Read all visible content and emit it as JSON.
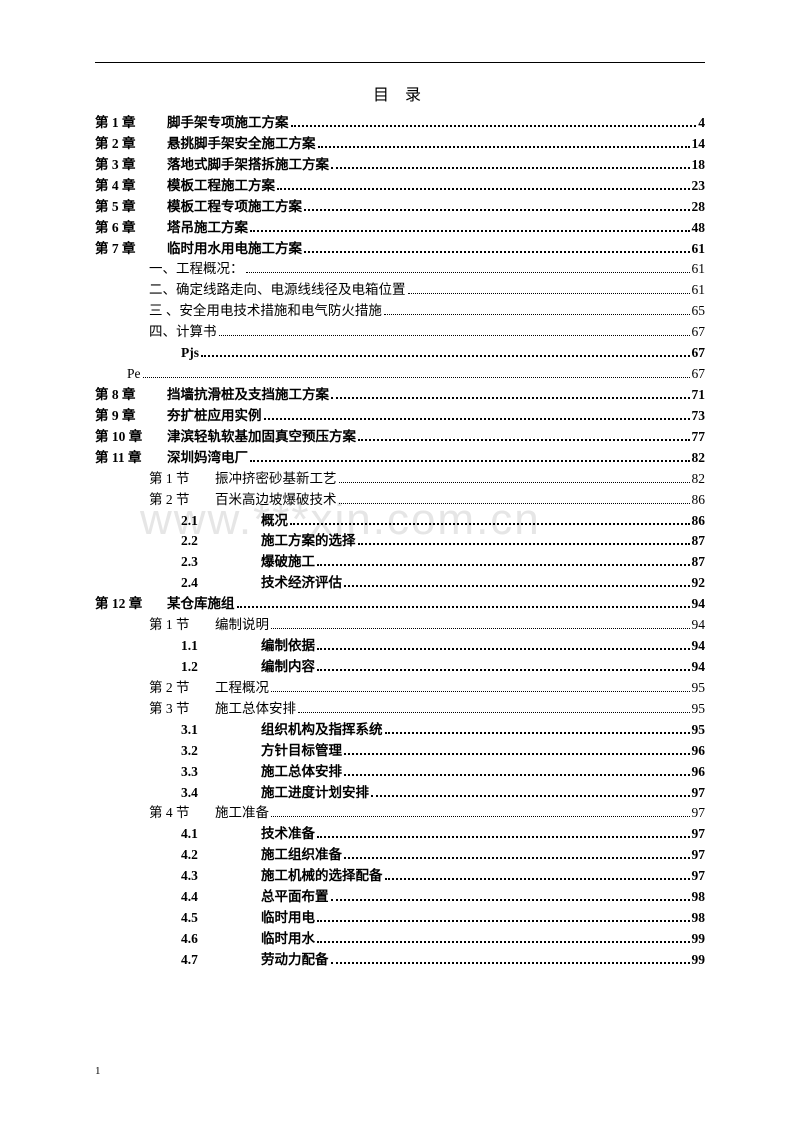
{
  "title": "目 录",
  "watermark": "www.***xin.com.cn",
  "footer_page": "1",
  "style": {
    "page_bg": "#ffffff",
    "text_color": "#000000",
    "watermark_color": "#e6e6e6",
    "font_body_pt": 10.5,
    "font_title_pt": 12,
    "line_height": 1.55
  },
  "entries": [
    {
      "level": "lvl1",
      "bold": true,
      "label": "第 1 章",
      "title": "脚手架专项施工方案",
      "page": "4"
    },
    {
      "level": "lvl1",
      "bold": true,
      "label": "第 2 章",
      "title": "悬挑脚手架安全施工方案",
      "page": "14"
    },
    {
      "level": "lvl1",
      "bold": true,
      "label": "第 3 章",
      "title": "落地式脚手架搭拆施工方案",
      "page": "18"
    },
    {
      "level": "lvl1",
      "bold": true,
      "label": "第 4 章",
      "title": "模板工程施工方案",
      "page": "23"
    },
    {
      "level": "lvl1",
      "bold": true,
      "label": "第 5 章",
      "title": "模板工程专项施工方案",
      "page": "28"
    },
    {
      "level": "lvl1",
      "bold": true,
      "label": "第 6 章",
      "title": "塔吊施工方案",
      "page": "48"
    },
    {
      "level": "lvl1",
      "bold": true,
      "label": "第 7 章",
      "title": "临时用水用电施工方案",
      "page": "61"
    },
    {
      "level": "lvl2n",
      "bold": false,
      "label": "",
      "title": "一、工程概况：",
      "page": "61",
      "thin": true
    },
    {
      "level": "lvl2n",
      "bold": false,
      "label": "",
      "title": "二、确定线路走向、电源线线径及电箱位置",
      "page": "61",
      "thin": true
    },
    {
      "level": "lvl2n",
      "bold": false,
      "label": "",
      "title": "三 、安全用电技术措施和电气防火措施",
      "page": "65",
      "thin": true
    },
    {
      "level": "lvl2n",
      "bold": false,
      "label": "",
      "title": "四、计算书",
      "page": "67",
      "thin": true
    },
    {
      "level": "lvl-pjs",
      "bold": true,
      "label": "",
      "title": "Pjs",
      "page": "67"
    },
    {
      "level": "lvl-pe",
      "bold": false,
      "label": "",
      "title": "Pe",
      "page": "67",
      "thin": true
    },
    {
      "level": "lvl1",
      "bold": true,
      "label": "第 8 章",
      "title": "挡墙抗滑桩及支挡施工方案",
      "page": "71"
    },
    {
      "level": "lvl1",
      "bold": true,
      "label": "第 9 章",
      "title": "夯扩桩应用实例",
      "page": "73"
    },
    {
      "level": "lvl1",
      "bold": true,
      "label": "第 10 章",
      "title": "津滨轻轨软基加固真空预压方案",
      "page": "77"
    },
    {
      "level": "lvl1",
      "bold": true,
      "label": "第 11 章",
      "title": "深圳妈湾电厂",
      "page": "82"
    },
    {
      "level": "lvl2",
      "bold": false,
      "label": "第 1 节",
      "title": "振冲挤密砂基新工艺",
      "page": "82",
      "thin": true
    },
    {
      "level": "lvl2",
      "bold": false,
      "label": "第 2 节",
      "title": "百米高边坡爆破技术",
      "page": "86",
      "thin": true
    },
    {
      "level": "lvl3",
      "bold": true,
      "label": "2.1",
      "title": "概况",
      "page": "86"
    },
    {
      "level": "lvl3",
      "bold": true,
      "label": "2.2",
      "title": "施工方案的选择",
      "page": "87"
    },
    {
      "level": "lvl3",
      "bold": true,
      "label": "2.3",
      "title": "爆破施工",
      "page": "87"
    },
    {
      "level": "lvl3",
      "bold": true,
      "label": "2.4",
      "title": "技术经济评估",
      "page": "92"
    },
    {
      "level": "lvl1",
      "bold": true,
      "label": "第 12 章",
      "title": "某仓库施组",
      "page": "94"
    },
    {
      "level": "lvl2",
      "bold": false,
      "label": "第 1 节",
      "title": "编制说明",
      "page": "94",
      "thin": true
    },
    {
      "level": "lvl3",
      "bold": true,
      "label": "1.1",
      "title": "编制依据",
      "page": "94"
    },
    {
      "level": "lvl3",
      "bold": true,
      "label": "1.2",
      "title": "编制内容",
      "page": "94"
    },
    {
      "level": "lvl2",
      "bold": false,
      "label": "第 2 节",
      "title": "工程概况",
      "page": "95",
      "thin": true
    },
    {
      "level": "lvl2",
      "bold": false,
      "label": "第 3 节",
      "title": "施工总体安排",
      "page": "95",
      "thin": true
    },
    {
      "level": "lvl3",
      "bold": true,
      "label": "3.1",
      "title": "组织机构及指挥系统",
      "page": "95"
    },
    {
      "level": "lvl3",
      "bold": true,
      "label": "3.2",
      "title": "方针目标管理",
      "page": "96"
    },
    {
      "level": "lvl3",
      "bold": true,
      "label": "3.3",
      "title": "施工总体安排",
      "page": "96"
    },
    {
      "level": "lvl3",
      "bold": true,
      "label": "3.4",
      "title": "施工进度计划安排",
      "page": "97"
    },
    {
      "level": "lvl2",
      "bold": false,
      "label": "第 4 节",
      "title": "施工准备",
      "page": "97",
      "thin": true
    },
    {
      "level": "lvl3",
      "bold": true,
      "label": "4.1",
      "title": "技术准备",
      "page": "97"
    },
    {
      "level": "lvl3",
      "bold": true,
      "label": "4.2",
      "title": "施工组织准备",
      "page": "97"
    },
    {
      "level": "lvl3",
      "bold": true,
      "label": "4.3",
      "title": "施工机械的选择配备",
      "page": "97"
    },
    {
      "level": "lvl3",
      "bold": true,
      "label": "4.4",
      "title": "总平面布置",
      "page": "98"
    },
    {
      "level": "lvl3",
      "bold": true,
      "label": "4.5",
      "title": "临时用电",
      "page": "98"
    },
    {
      "level": "lvl3",
      "bold": true,
      "label": "4.6",
      "title": "临时用水",
      "page": "99"
    },
    {
      "level": "lvl3",
      "bold": true,
      "label": "4.7",
      "title": "劳动力配备",
      "page": "99"
    }
  ]
}
